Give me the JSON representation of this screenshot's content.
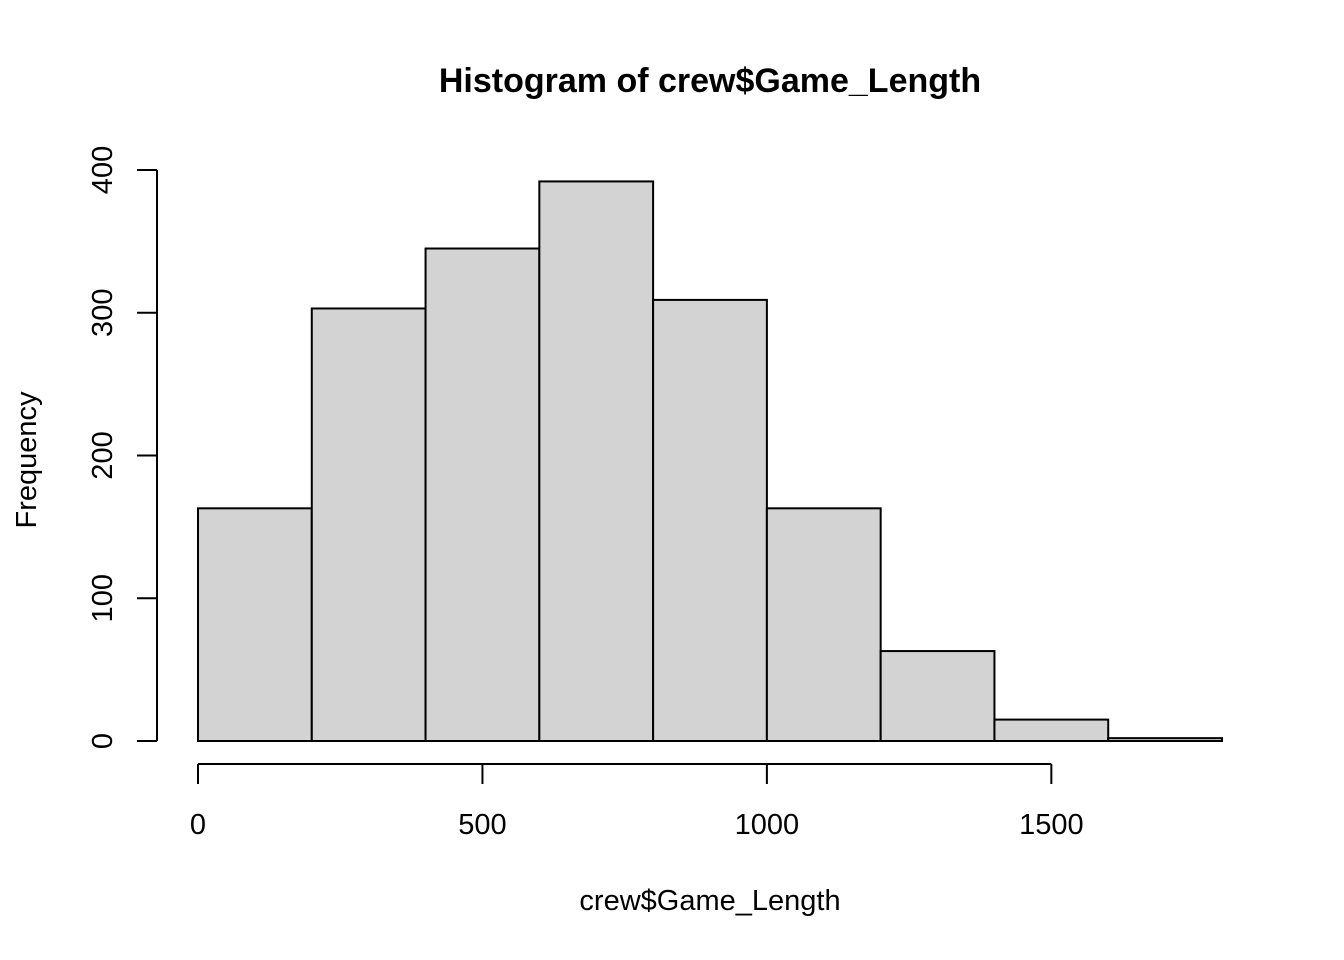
{
  "chart_data": {
    "type": "bar",
    "title": "Histogram of crew$Game_Length",
    "xlabel": "crew$Game_Length",
    "ylabel": "Frequency",
    "bins": [
      {
        "from": 0,
        "to": 200,
        "count": 163
      },
      {
        "from": 200,
        "to": 400,
        "count": 303
      },
      {
        "from": 400,
        "to": 600,
        "count": 345
      },
      {
        "from": 600,
        "to": 800,
        "count": 392
      },
      {
        "from": 800,
        "to": 1000,
        "count": 309
      },
      {
        "from": 1000,
        "to": 1200,
        "count": 163
      },
      {
        "from": 1200,
        "to": 1400,
        "count": 63
      },
      {
        "from": 1400,
        "to": 1600,
        "count": 15
      },
      {
        "from": 1600,
        "to": 1800,
        "count": 2
      }
    ],
    "xlim": [
      0,
      1800
    ],
    "ylim": [
      0,
      400
    ],
    "x_ticks": [
      0,
      500,
      1000,
      1500
    ],
    "y_ticks": [
      0,
      100,
      200,
      300,
      400
    ],
    "bar_color": "#d3d3d3",
    "grid": false,
    "legend": "none"
  }
}
